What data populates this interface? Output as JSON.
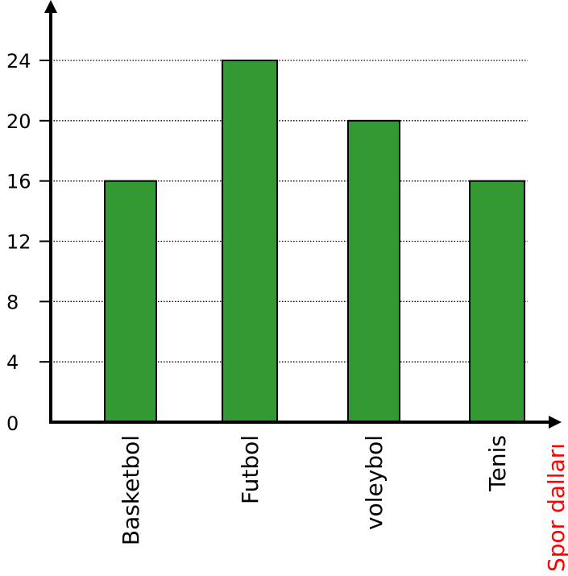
{
  "chart_data": {
    "type": "bar",
    "categories": [
      "Basketbol",
      "Futbol",
      "voleybol",
      "Tenis"
    ],
    "values": [
      16,
      24,
      20,
      16
    ],
    "xlabel": "Spor dalları",
    "ylabel": "",
    "ylim": [
      0,
      24
    ],
    "yticks": [
      0,
      4,
      8,
      12,
      16,
      20,
      24
    ],
    "grid": "horizontal-dotted",
    "bar_color": "#339933",
    "xlabel_color": "#ff0000"
  }
}
